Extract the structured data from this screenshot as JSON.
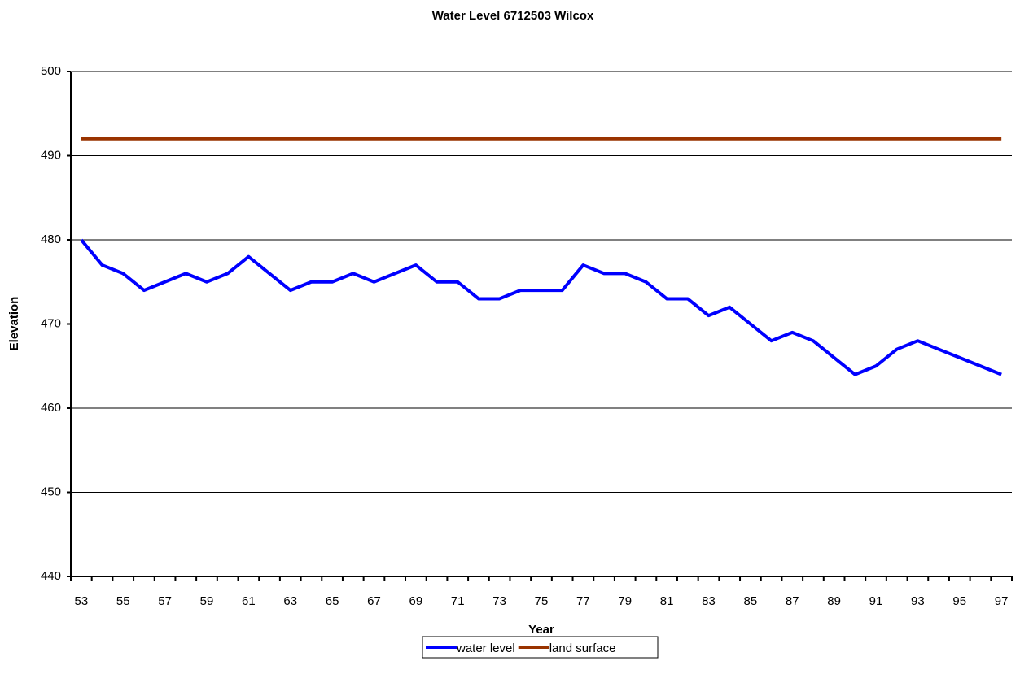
{
  "chart_data": {
    "type": "line",
    "title": "Water Level 6712503 Wilcox",
    "x_label": "Year",
    "y_label": "Elevation",
    "categories": [
      "53",
      null,
      "55",
      null,
      "57",
      null,
      "59",
      null,
      "61",
      null,
      "63",
      null,
      "65",
      null,
      "67",
      null,
      "69",
      null,
      "71",
      null,
      "73",
      null,
      "75",
      null,
      "77",
      null,
      "79",
      null,
      "81",
      null,
      "83",
      null,
      "85",
      null,
      "87",
      null,
      "89",
      null,
      "91",
      null,
      "93",
      null,
      "95",
      null,
      "97"
    ],
    "series": [
      {
        "name": "water level",
        "color": "#0000ff",
        "values": [
          480,
          477,
          476,
          474,
          475,
          476,
          475,
          476,
          478,
          476,
          474,
          475,
          475,
          476,
          475,
          476,
          477,
          475,
          475,
          473,
          473,
          474,
          474,
          474,
          477,
          476,
          476,
          475,
          473,
          473,
          471,
          472,
          470,
          468,
          469,
          468,
          466,
          464,
          465,
          467,
          468,
          467,
          466,
          465,
          464
        ]
      },
      {
        "name": "land surface",
        "color": "#993300",
        "values": [
          492,
          492,
          492,
          492,
          492,
          492,
          492,
          492,
          492,
          492,
          492,
          492,
          492,
          492,
          492,
          492,
          492,
          492,
          492,
          492,
          492,
          492,
          492,
          492,
          492,
          492,
          492,
          492,
          492,
          492,
          492,
          492,
          492,
          492,
          492,
          492,
          492,
          492,
          492,
          492,
          492,
          492,
          492,
          492,
          492
        ]
      }
    ],
    "ylim": [
      440,
      500
    ],
    "yticks": [
      440,
      450,
      460,
      470,
      480,
      490,
      500
    ],
    "grid": true,
    "legend": "bottom"
  }
}
